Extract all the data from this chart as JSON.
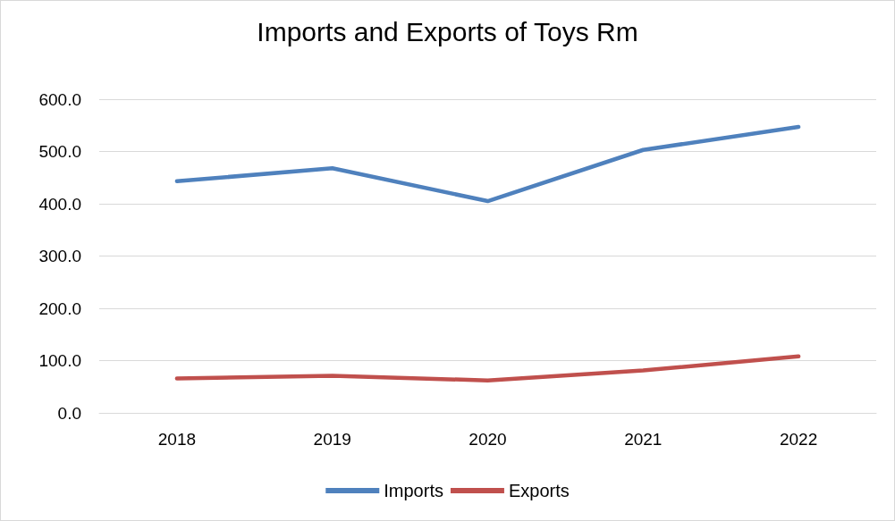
{
  "chart_data": {
    "type": "line",
    "title": "Imports and Exports of Toys Rm",
    "categories": [
      "2018",
      "2019",
      "2020",
      "2021",
      "2022"
    ],
    "series": [
      {
        "name": "Imports",
        "color": "#4f81bd",
        "values": [
          443,
          468,
          405,
          503,
          547
        ]
      },
      {
        "name": "Exports",
        "color": "#c0504d",
        "values": [
          66,
          71,
          62,
          81,
          108
        ]
      }
    ],
    "ylim": [
      0,
      600
    ],
    "yticks": [
      {
        "value": 0,
        "label": "0.0"
      },
      {
        "value": 100,
        "label": "100.0"
      },
      {
        "value": 200,
        "label": "200.0"
      },
      {
        "value": 300,
        "label": "300.0"
      },
      {
        "value": 400,
        "label": "400.0"
      },
      {
        "value": 500,
        "label": "500.0"
      },
      {
        "value": 600,
        "label": "600.0"
      }
    ],
    "grid": "y",
    "legend": "bottom",
    "marker": "none",
    "line_style": "solid"
  }
}
